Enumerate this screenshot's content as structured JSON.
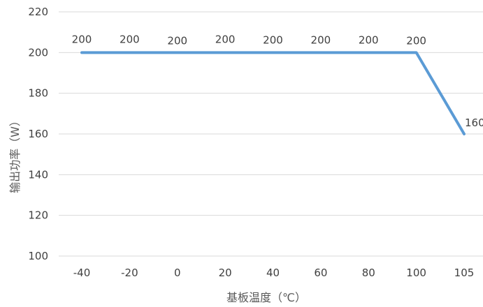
{
  "chart_data": {
    "type": "line",
    "categories": [
      "-40",
      "-20",
      "0",
      "20",
      "40",
      "60",
      "80",
      "100",
      "105"
    ],
    "series": [
      {
        "values": [
          200,
          200,
          200,
          200,
          200,
          200,
          200,
          200,
          160
        ]
      }
    ],
    "data_labels": [
      "200",
      "200",
      "200",
      "200",
      "200",
      "200",
      "200",
      "200",
      "160"
    ],
    "xlabel": "基板温度（℃）",
    "ylabel": "输出功率（W）",
    "ylim": [
      100,
      220
    ],
    "yticks": [
      100,
      120,
      140,
      160,
      180,
      200,
      220
    ],
    "grid": true,
    "legend": "none",
    "line_color": "#5b9bd5"
  }
}
